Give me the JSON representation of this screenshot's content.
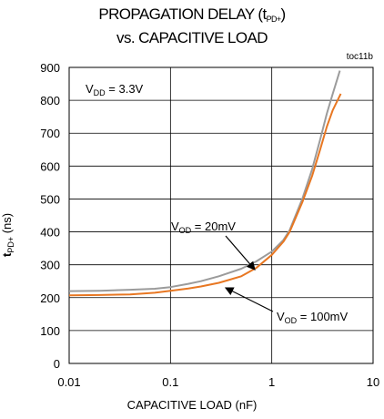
{
  "chart_data": {
    "type": "line",
    "title_line1_prefix": "PROPAGATION DELAY (t",
    "title_line1_sub": "PD+",
    "title_line1_suffix": ")",
    "title_line2": "vs. CAPACITIVE LOAD",
    "figure_id": "toc11b",
    "xlabel": "CAPACITIVE LOAD (nF)",
    "ylabel_main": "t",
    "ylabel_sub": "PD+",
    "ylabel_suffix": " (ns)",
    "x_scale": "log",
    "xlim": [
      0.01,
      10
    ],
    "ylim": [
      0,
      900
    ],
    "x_ticks": [
      0.01,
      0.1,
      1,
      10
    ],
    "x_tick_labels": [
      "0.01",
      "0.1",
      "1",
      "10"
    ],
    "y_ticks": [
      0,
      100,
      200,
      300,
      400,
      500,
      600,
      700,
      800,
      900
    ],
    "y_tick_labels": [
      "0",
      "100",
      "200",
      "300",
      "400",
      "500",
      "600",
      "700",
      "800",
      "900"
    ],
    "grid": true,
    "annotations": [
      {
        "main": "V",
        "sub": "DD",
        "suffix": " = 3.3V"
      },
      {
        "main": "V",
        "sub": "OD",
        "suffix": " = 20mV"
      },
      {
        "main": "V",
        "sub": "OD",
        "suffix": " = 100mV"
      }
    ],
    "series": [
      {
        "color": "#9b9b9b",
        "x": [
          0.01,
          0.02,
          0.04,
          0.07,
          0.1,
          0.15,
          0.2,
          0.3,
          0.5,
          0.7,
          1.0,
          1.3,
          1.5,
          2.0,
          2.5,
          3.0,
          3.5,
          4.0,
          4.7
        ],
        "y": [
          220,
          221,
          224,
          227,
          232,
          242,
          250,
          265,
          288,
          310,
          340,
          375,
          405,
          500,
          590,
          680,
          760,
          820,
          890
        ]
      },
      {
        "color": "#e87722",
        "x": [
          0.01,
          0.02,
          0.04,
          0.07,
          0.1,
          0.15,
          0.2,
          0.3,
          0.5,
          0.7,
          1.0,
          1.3,
          1.5,
          2.0,
          2.5,
          3.0,
          3.5,
          4.0,
          4.8
        ],
        "y": [
          207,
          208,
          210,
          215,
          221,
          228,
          234,
          245,
          265,
          290,
          330,
          370,
          400,
          490,
          570,
          650,
          720,
          770,
          820
        ]
      }
    ]
  }
}
